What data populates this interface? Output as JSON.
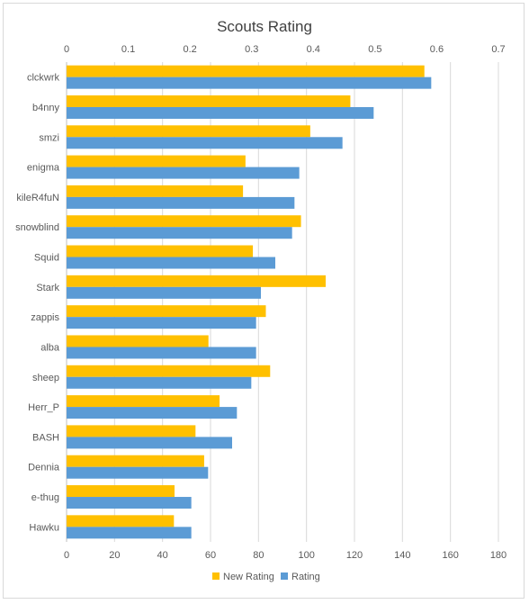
{
  "chart_data": {
    "type": "bar",
    "orientation": "horizontal",
    "title": "Scouts Rating",
    "categories": [
      "clckwrk",
      "b4nny",
      "smzi",
      "enigma",
      "kileR4fuN",
      "snowblind",
      "Squid",
      "Stark",
      "zappis",
      "alba",
      "sheep",
      "Herr_P",
      "BASH",
      "Dennia",
      "e-thug",
      "Hawku"
    ],
    "series": [
      {
        "name": "New Rating",
        "axis": "top",
        "color": "#ffc000",
        "values": [
          0.58,
          0.46,
          0.395,
          0.29,
          0.286,
          0.38,
          0.302,
          0.42,
          0.323,
          0.23,
          0.33,
          0.248,
          0.209,
          0.223,
          0.175,
          0.174
        ]
      },
      {
        "name": "Rating",
        "axis": "bottom",
        "color": "#5b9bd5",
        "values": [
          152,
          128,
          115,
          97,
          95,
          94,
          87,
          81,
          79,
          79,
          77,
          71,
          69,
          59,
          52,
          52
        ]
      }
    ],
    "top_axis": {
      "min": 0,
      "max": 0.7,
      "ticks": [
        0,
        0.1,
        0.2,
        0.3,
        0.4,
        0.5,
        0.6,
        0.7
      ],
      "tick_labels": [
        "0",
        "0.1",
        "0.2",
        "0.3",
        "0.4",
        "0.5",
        "0.6",
        "0.7"
      ]
    },
    "bottom_axis": {
      "min": 0,
      "max": 180,
      "ticks": [
        0,
        20,
        40,
        60,
        80,
        100,
        120,
        140,
        160,
        180
      ],
      "tick_labels": [
        "0",
        "20",
        "40",
        "60",
        "80",
        "100",
        "120",
        "140",
        "160",
        "180"
      ]
    },
    "grid": true,
    "legend": "bottom"
  }
}
